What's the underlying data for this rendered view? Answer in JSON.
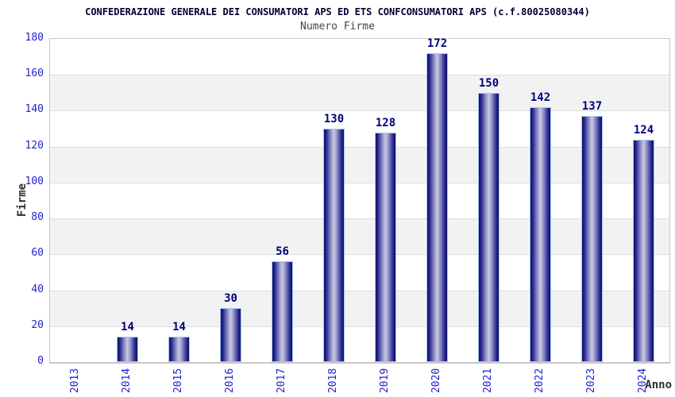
{
  "chart_data": {
    "type": "bar",
    "title": "CONFEDERAZIONE GENERALE DEI CONSUMATORI APS ED ETS CONFCONSUMATORI APS (c.f.80025080344)",
    "subtitle": "Numero Firme",
    "xlabel": "Anno",
    "ylabel": "Firme",
    "categories": [
      "2013",
      "2014",
      "2015",
      "2016",
      "2017",
      "2018",
      "2019",
      "2020",
      "2021",
      "2022",
      "2023",
      "2024"
    ],
    "values": [
      0,
      14,
      14,
      30,
      56,
      130,
      128,
      172,
      150,
      142,
      137,
      124
    ],
    "ylim": [
      0,
      180
    ],
    "yticks": [
      0,
      20,
      40,
      60,
      80,
      100,
      120,
      140,
      160,
      180
    ],
    "grid": "horizontal",
    "legend": "none",
    "background_bands": "alternating gray/white every 20 units",
    "bar_labels_shown": true
  },
  "colors": {
    "title_color": "#000033",
    "subtitle_color": "#444444",
    "tick_blue": "#2222cc",
    "value_navy": "#000080",
    "bar_dark": "#14146e",
    "bar_mid": "#8585c0",
    "bar_light": "#cacae4",
    "bar_border": "#a5cbf0",
    "band_gray": "#f2f2f2",
    "grid": "#dcdcdc",
    "axis": "#c8c8c8",
    "axis_label_color": "#2e2e2e"
  }
}
